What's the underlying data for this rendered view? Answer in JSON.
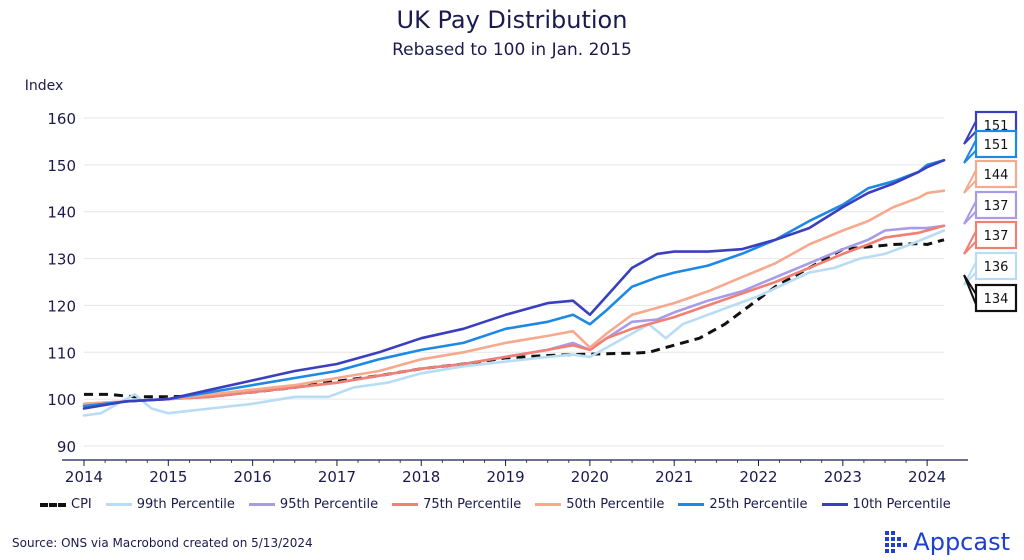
{
  "chart_data": {
    "type": "line",
    "title": "UK Pay Distribution",
    "subtitle": "Rebased to 100 in Jan. 2015",
    "ylabel": "Index",
    "xlabel": "",
    "ylim": [
      87,
      163
    ],
    "xlim": [
      2014.0,
      2024.2
    ],
    "yticks": [
      90,
      100,
      110,
      120,
      130,
      140,
      150,
      160
    ],
    "xticks": [
      2014,
      2015,
      2016,
      2017,
      2018,
      2019,
      2020,
      2021,
      2022,
      2023,
      2024
    ],
    "grid": true,
    "legend_position": "bottom",
    "series": [
      {
        "name": "CPI",
        "color": "#111111",
        "dash": true,
        "end_label": "134",
        "x": [
          2014.0,
          2014.3,
          2014.6,
          2015.0,
          2015.5,
          2016.0,
          2016.5,
          2017.0,
          2017.5,
          2018.0,
          2018.5,
          2019.0,
          2019.5,
          2020.0,
          2020.5,
          2020.7,
          2021.0,
          2021.3,
          2021.6,
          2021.9,
          2022.2,
          2022.5,
          2022.8,
          2023.0,
          2023.3,
          2023.6,
          2023.9,
          2024.0,
          2024.2
        ],
        "values": [
          101,
          101,
          100.5,
          100.5,
          100.8,
          101.5,
          102.5,
          103.8,
          105,
          106.5,
          107.5,
          108.8,
          109.3,
          109.6,
          109.8,
          110,
          111.5,
          113,
          116,
          120,
          124,
          127,
          130,
          132,
          132.5,
          133,
          133.2,
          133,
          134
        ]
      },
      {
        "name": "99th Percentile",
        "color": "#b9dcf5",
        "dash": false,
        "end_label": "136",
        "x": [
          2014.0,
          2014.2,
          2014.4,
          2014.6,
          2014.8,
          2015.0,
          2015.5,
          2016.0,
          2016.5,
          2016.9,
          2017.2,
          2017.6,
          2018.0,
          2018.5,
          2019.0,
          2019.5,
          2019.8,
          2020.0,
          2020.2,
          2020.5,
          2020.7,
          2020.9,
          2021.1,
          2021.4,
          2021.7,
          2022.0,
          2022.3,
          2022.6,
          2022.9,
          2023.2,
          2023.5,
          2023.8,
          2024.0,
          2024.2
        ],
        "values": [
          96.5,
          97,
          99,
          101,
          98,
          97,
          98,
          99,
          100.5,
          100.5,
          102.5,
          103.5,
          105.5,
          107,
          108,
          109,
          109.5,
          109,
          111,
          114,
          116,
          113,
          116,
          118,
          120,
          122,
          124.5,
          127,
          128,
          130,
          131,
          133,
          134.5,
          136
        ]
      },
      {
        "name": "95th Percentile",
        "color": "#a89be8",
        "dash": false,
        "end_label": "137",
        "x": [
          2014.0,
          2014.5,
          2015.0,
          2015.5,
          2016.0,
          2016.5,
          2017.0,
          2017.5,
          2018.0,
          2018.5,
          2019.0,
          2019.5,
          2019.8,
          2020.0,
          2020.2,
          2020.5,
          2020.8,
          2021.0,
          2021.4,
          2021.8,
          2022.2,
          2022.6,
          2023.0,
          2023.3,
          2023.5,
          2023.8,
          2024.0,
          2024.2
        ],
        "values": [
          98.5,
          99.5,
          100,
          100.5,
          101.5,
          102.5,
          103.5,
          105,
          106.5,
          107.5,
          109,
          110.5,
          112,
          110.5,
          113,
          116.5,
          117,
          118.5,
          121,
          123,
          126,
          129,
          132,
          134,
          136,
          136.5,
          136.5,
          137
        ]
      },
      {
        "name": "75th Percentile",
        "color": "#f07f74",
        "dash": false,
        "end_label": "137",
        "x": [
          2014.0,
          2014.5,
          2015.0,
          2015.5,
          2016.0,
          2016.5,
          2017.0,
          2017.5,
          2018.0,
          2018.5,
          2019.0,
          2019.5,
          2019.8,
          2020.0,
          2020.2,
          2020.5,
          2020.8,
          2021.0,
          2021.4,
          2021.8,
          2022.2,
          2022.6,
          2023.0,
          2023.3,
          2023.5,
          2023.7,
          2023.9,
          2024.0,
          2024.2
        ],
        "values": [
          99,
          99.5,
          100,
          100.5,
          101.5,
          102.5,
          103.5,
          105,
          106.5,
          107.5,
          109,
          110.5,
          111.5,
          110.5,
          113,
          115,
          116.5,
          117.5,
          120,
          122.5,
          125,
          128,
          131,
          133,
          134.5,
          135,
          135.5,
          136,
          137
        ]
      },
      {
        "name": "50th Percentile",
        "color": "#f6a98d",
        "dash": false,
        "end_label": "144",
        "x": [
          2014.0,
          2014.5,
          2015.0,
          2015.5,
          2016.0,
          2016.5,
          2017.0,
          2017.5,
          2018.0,
          2018.5,
          2019.0,
          2019.5,
          2019.8,
          2020.0,
          2020.2,
          2020.5,
          2020.8,
          2021.0,
          2021.4,
          2021.8,
          2022.2,
          2022.6,
          2023.0,
          2023.3,
          2023.6,
          2023.9,
          2024.0,
          2024.2
        ],
        "values": [
          99,
          99.5,
          100,
          101,
          102,
          103,
          104.5,
          106,
          108.5,
          110,
          112,
          113.5,
          114.5,
          111,
          114,
          118,
          119.5,
          120.5,
          123,
          126,
          129,
          133,
          136,
          138,
          141,
          143,
          144,
          144.5
        ]
      },
      {
        "name": "25th Percentile",
        "color": "#1e88e5",
        "dash": false,
        "end_label": "151",
        "x": [
          2014.0,
          2014.5,
          2015.0,
          2015.5,
          2016.0,
          2016.5,
          2017.0,
          2017.5,
          2018.0,
          2018.5,
          2019.0,
          2019.5,
          2019.8,
          2020.0,
          2020.2,
          2020.5,
          2020.8,
          2021.0,
          2021.4,
          2021.8,
          2022.2,
          2022.6,
          2023.0,
          2023.3,
          2023.6,
          2023.9,
          2024.0,
          2024.2
        ],
        "values": [
          98.5,
          99.5,
          100,
          101.5,
          103,
          104.5,
          106,
          108.5,
          110.5,
          112,
          115,
          116.5,
          118,
          116,
          119,
          124,
          126,
          127,
          128.5,
          131,
          134,
          138,
          141.5,
          145,
          146.5,
          148.5,
          150,
          151
        ]
      },
      {
        "name": "10th Percentile",
        "color": "#3a3fbf",
        "dash": false,
        "end_label": "151",
        "x": [
          2014.0,
          2014.5,
          2015.0,
          2015.5,
          2016.0,
          2016.5,
          2017.0,
          2017.5,
          2018.0,
          2018.5,
          2019.0,
          2019.5,
          2019.8,
          2020.0,
          2020.2,
          2020.5,
          2020.8,
          2021.0,
          2021.4,
          2021.8,
          2022.2,
          2022.6,
          2023.0,
          2023.3,
          2023.6,
          2023.9,
          2024.0,
          2024.2
        ],
        "values": [
          98,
          99.5,
          100,
          102,
          104,
          106,
          107.5,
          110,
          113,
          115,
          118,
          120.5,
          121,
          118,
          122,
          128,
          131,
          131.5,
          131.5,
          132,
          134,
          136.5,
          141,
          144,
          146,
          148.5,
          149.5,
          151
        ]
      }
    ]
  },
  "footer": {
    "source": "Source: ONS via Macrobond created on 5/13/2024",
    "brand": "Appcast"
  },
  "colors": {
    "text": "#1a1a4e",
    "brand": "#1f3fd1",
    "grid": "#e6e6e6"
  }
}
